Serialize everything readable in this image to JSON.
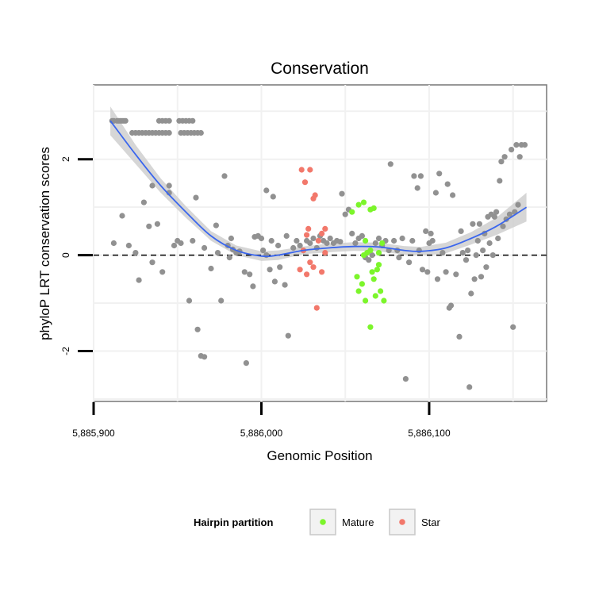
{
  "chart_data": {
    "type": "scatter",
    "title": "Conservation",
    "xlabel": "Genomic Position",
    "ylabel": "phyloP LRT conservation scores",
    "xlim": [
      5885900,
      5886170
    ],
    "ylim": [
      -3.05,
      3.55
    ],
    "x_ticks": [
      5885900,
      5886000,
      5886100
    ],
    "x_tick_labels": [
      "5,885,900",
      "5,886,000",
      "5,886,100"
    ],
    "y_ticks": [
      -2,
      0,
      2
    ],
    "y_tick_labels": [
      "-2",
      "0",
      "2"
    ],
    "grid": true,
    "reference_line": {
      "y": 0,
      "style": "dashed"
    },
    "legend": {
      "title": "Hairpin partition",
      "position": "bottom",
      "entries": [
        {
          "label": "Mature",
          "color": "#7cf52b"
        },
        {
          "label": "Star",
          "color": "#f2786b"
        }
      ]
    },
    "colors": {
      "other": "#919191",
      "Mature": "#7cf52b",
      "Star": "#f2786b",
      "smooth": "#3a66ee",
      "ribbon": "#cfcfcf"
    },
    "series": [
      {
        "name": "Other",
        "group": "other",
        "points": [
          [
            5885911,
            2.8
          ],
          [
            5885912,
            2.8
          ],
          [
            5885914,
            2.8
          ],
          [
            5885915,
            2.8
          ],
          [
            5885916,
            2.8
          ],
          [
            5885917,
            2.8
          ],
          [
            5885918,
            2.8
          ],
          [
            5885919,
            2.8
          ],
          [
            5885923,
            2.55
          ],
          [
            5885925,
            2.55
          ],
          [
            5885927,
            2.55
          ],
          [
            5885929,
            2.55
          ],
          [
            5885931,
            2.55
          ],
          [
            5885933,
            2.55
          ],
          [
            5885935,
            2.55
          ],
          [
            5885937,
            2.55
          ],
          [
            5885939,
            2.55
          ],
          [
            5885941,
            2.55
          ],
          [
            5885943,
            2.55
          ],
          [
            5885945,
            2.55
          ],
          [
            5885939,
            2.8
          ],
          [
            5885941,
            2.8
          ],
          [
            5885943,
            2.8
          ],
          [
            5885945,
            2.8
          ],
          [
            5885951,
            2.8
          ],
          [
            5885953,
            2.8
          ],
          [
            5885955,
            2.8
          ],
          [
            5885957,
            2.8
          ],
          [
            5885959,
            2.8
          ],
          [
            5885952,
            2.55
          ],
          [
            5885954,
            2.55
          ],
          [
            5885956,
            2.55
          ],
          [
            5885958,
            2.55
          ],
          [
            5885960,
            2.55
          ],
          [
            5885962,
            2.55
          ],
          [
            5885964,
            2.55
          ],
          [
            5885912,
            0.25
          ],
          [
            5885917,
            0.82
          ],
          [
            5885921,
            0.2
          ],
          [
            5885925,
            0.05
          ],
          [
            5885927,
            -0.52
          ],
          [
            5885930,
            1.1
          ],
          [
            5885933,
            0.6
          ],
          [
            5885935,
            1.45
          ],
          [
            5885935,
            -0.15
          ],
          [
            5885938,
            0.65
          ],
          [
            5885941,
            -0.35
          ],
          [
            5885945,
            1.45
          ],
          [
            5885945,
            1.3
          ],
          [
            5885948,
            0.2
          ],
          [
            5885950,
            0.3
          ],
          [
            5885952,
            0.25
          ],
          [
            5885957,
            -0.95
          ],
          [
            5885959,
            0.3
          ],
          [
            5885961,
            1.2
          ],
          [
            5885962,
            -1.55
          ],
          [
            5885964,
            -2.1
          ],
          [
            5885966,
            -2.12
          ],
          [
            5885966,
            0.15
          ],
          [
            5885970,
            -0.28
          ],
          [
            5885973,
            0.62
          ],
          [
            5885974,
            0.05
          ],
          [
            5885976,
            -0.95
          ],
          [
            5885978,
            1.65
          ],
          [
            5885980,
            0.2
          ],
          [
            5885981,
            -0.05
          ],
          [
            5885982,
            0.35
          ],
          [
            5885983,
            0.12
          ],
          [
            5885985,
            0.05
          ],
          [
            5885987,
            0.08
          ],
          [
            5885990,
            -0.35
          ],
          [
            5885991,
            -2.25
          ],
          [
            5885993,
            -0.4
          ],
          [
            5885995,
            -0.65
          ],
          [
            5885996,
            0.38
          ],
          [
            5885998,
            0.4
          ],
          [
            5886000,
            0.35
          ],
          [
            5886001,
            0.1
          ],
          [
            5886003,
            1.35
          ],
          [
            5886003,
            0.0
          ],
          [
            5886005,
            -0.3
          ],
          [
            5886006,
            0.3
          ],
          [
            5886007,
            1.22
          ],
          [
            5886008,
            -0.55
          ],
          [
            5886010,
            0.2
          ],
          [
            5886011,
            -0.25
          ],
          [
            5886014,
            -0.62
          ],
          [
            5886015,
            0.4
          ],
          [
            5886016,
            -1.68
          ],
          [
            5886019,
            0.15
          ],
          [
            5886021,
            0.3
          ],
          [
            5886023,
            0.2
          ],
          [
            5886025,
            0.1
          ],
          [
            5886027,
            0.3
          ],
          [
            5886029,
            0.25
          ],
          [
            5886031,
            0.35
          ],
          [
            5886033,
            0.15
          ],
          [
            5886035,
            0.4
          ],
          [
            5886037,
            0.3
          ],
          [
            5886039,
            0.25
          ],
          [
            5886041,
            0.35
          ],
          [
            5886043,
            0.25
          ],
          [
            5886045,
            0.3
          ],
          [
            5886047,
            0.28
          ],
          [
            5886048,
            1.28
          ],
          [
            5886050,
            0.85
          ],
          [
            5886052,
            0.95
          ],
          [
            5886054,
            0.45
          ],
          [
            5886056,
            0.25
          ],
          [
            5886058,
            0.35
          ],
          [
            5886060,
            0.4
          ],
          [
            5886062,
            -0.05
          ],
          [
            5886064,
            -0.1
          ],
          [
            5886066,
            0.0
          ],
          [
            5886068,
            0.25
          ],
          [
            5886070,
            0.35
          ],
          [
            5886072,
            0.2
          ],
          [
            5886074,
            0.3
          ],
          [
            5886076,
            0.1
          ],
          [
            5886077,
            1.9
          ],
          [
            5886079,
            0.3
          ],
          [
            5886081,
            0.1
          ],
          [
            5886082,
            -0.05
          ],
          [
            5886084,
            0.35
          ],
          [
            5886086,
            -2.58
          ],
          [
            5886088,
            -0.15
          ],
          [
            5886090,
            0.3
          ],
          [
            5886091,
            1.65
          ],
          [
            5886093,
            1.4
          ],
          [
            5886094,
            0.1
          ],
          [
            5886095,
            1.65
          ],
          [
            5886096,
            -0.3
          ],
          [
            5886098,
            0.5
          ],
          [
            5886099,
            -0.35
          ],
          [
            5886100,
            0.25
          ],
          [
            5886101,
            0.45
          ],
          [
            5886102,
            0.3
          ],
          [
            5886104,
            1.3
          ],
          [
            5886105,
            -0.5
          ],
          [
            5886106,
            1.7
          ],
          [
            5886108,
            0.05
          ],
          [
            5886110,
            -0.35
          ],
          [
            5886111,
            1.48
          ],
          [
            5886112,
            -1.1
          ],
          [
            5886113,
            -1.05
          ],
          [
            5886114,
            1.25
          ],
          [
            5886116,
            -0.4
          ],
          [
            5886118,
            -1.7
          ],
          [
            5886119,
            0.5
          ],
          [
            5886120,
            0.05
          ],
          [
            5886122,
            -0.1
          ],
          [
            5886123,
            0.1
          ],
          [
            5886124,
            -2.75
          ],
          [
            5886125,
            -0.8
          ],
          [
            5886126,
            0.65
          ],
          [
            5886127,
            -0.5
          ],
          [
            5886128,
            0.0
          ],
          [
            5886129,
            0.3
          ],
          [
            5886130,
            0.65
          ],
          [
            5886131,
            -0.45
          ],
          [
            5886132,
            0.1
          ],
          [
            5886133,
            0.45
          ],
          [
            5886134,
            -0.25
          ],
          [
            5886135,
            0.8
          ],
          [
            5886136,
            0.25
          ],
          [
            5886137,
            0.85
          ],
          [
            5886138,
            0.0
          ],
          [
            5886139,
            0.8
          ],
          [
            5886140,
            0.9
          ],
          [
            5886141,
            0.35
          ],
          [
            5886142,
            1.55
          ],
          [
            5886143,
            1.95
          ],
          [
            5886144,
            0.6
          ],
          [
            5886145,
            2.05
          ],
          [
            5886146,
            0.75
          ],
          [
            5886148,
            0.85
          ],
          [
            5886149,
            2.2
          ],
          [
            5886150,
            -1.5
          ],
          [
            5886151,
            0.9
          ],
          [
            5886152,
            2.3
          ],
          [
            5886153,
            1.05
          ],
          [
            5886154,
            2.05
          ],
          [
            5886155,
            2.3
          ],
          [
            5886157,
            2.3
          ]
        ]
      },
      {
        "name": "Star",
        "group": "Star",
        "points": [
          [
            5886024,
            1.78
          ],
          [
            5886026,
            1.52
          ],
          [
            5886029,
            1.78
          ],
          [
            5886027,
            0.42
          ],
          [
            5886028,
            0.55
          ],
          [
            5886031,
            1.18
          ],
          [
            5886032,
            1.25
          ],
          [
            5886033,
            -1.1
          ],
          [
            5886034,
            0.3
          ],
          [
            5886036,
            0.45
          ],
          [
            5886038,
            0.55
          ],
          [
            5886038,
            0.05
          ],
          [
            5886036,
            -0.35
          ],
          [
            5886031,
            -0.25
          ],
          [
            5886025,
            0.1
          ],
          [
            5886023,
            -0.3
          ],
          [
            5886027,
            -0.4
          ],
          [
            5886029,
            -0.15
          ]
        ]
      },
      {
        "name": "Mature",
        "group": "Mature",
        "points": [
          [
            5886054,
            0.9
          ],
          [
            5886058,
            1.05
          ],
          [
            5886061,
            1.1
          ],
          [
            5886065,
            0.95
          ],
          [
            5886067,
            0.98
          ],
          [
            5886062,
            0.3
          ],
          [
            5886070,
            0.05
          ],
          [
            5886072,
            0.25
          ],
          [
            5886061,
            0.0
          ],
          [
            5886063,
            0.05
          ],
          [
            5886065,
            0.1
          ],
          [
            5886057,
            -0.45
          ],
          [
            5886058,
            -0.75
          ],
          [
            5886060,
            -0.6
          ],
          [
            5886062,
            -0.95
          ],
          [
            5886066,
            -0.35
          ],
          [
            5886067,
            -0.5
          ],
          [
            5886068,
            -0.85
          ],
          [
            5886069,
            -0.3
          ],
          [
            5886070,
            -0.2
          ],
          [
            5886071,
            -0.75
          ],
          [
            5886073,
            -0.95
          ],
          [
            5886065,
            -1.5
          ]
        ]
      }
    ],
    "smooth": {
      "x": [
        5885910,
        5885925,
        5885940,
        5885955,
        5885970,
        5885985,
        5886000,
        5886010,
        5886025,
        5886040,
        5886055,
        5886070,
        5886085,
        5886095,
        5886110,
        5886125,
        5886140,
        5886158
      ],
      "y": [
        2.8,
        2.1,
        1.45,
        0.9,
        0.4,
        0.1,
        -0.02,
        0.0,
        0.1,
        0.15,
        0.18,
        0.17,
        0.1,
        0.08,
        0.15,
        0.35,
        0.6,
        1.0
      ],
      "lower": [
        2.5,
        1.9,
        1.3,
        0.78,
        0.3,
        0.0,
        -0.12,
        -0.1,
        0.02,
        0.06,
        0.09,
        0.08,
        0.01,
        -0.01,
        0.04,
        0.22,
        0.42,
        0.7
      ],
      "upper": [
        3.1,
        2.3,
        1.6,
        1.02,
        0.5,
        0.2,
        0.08,
        0.1,
        0.18,
        0.24,
        0.27,
        0.26,
        0.19,
        0.17,
        0.26,
        0.48,
        0.78,
        1.3
      ]
    }
  }
}
